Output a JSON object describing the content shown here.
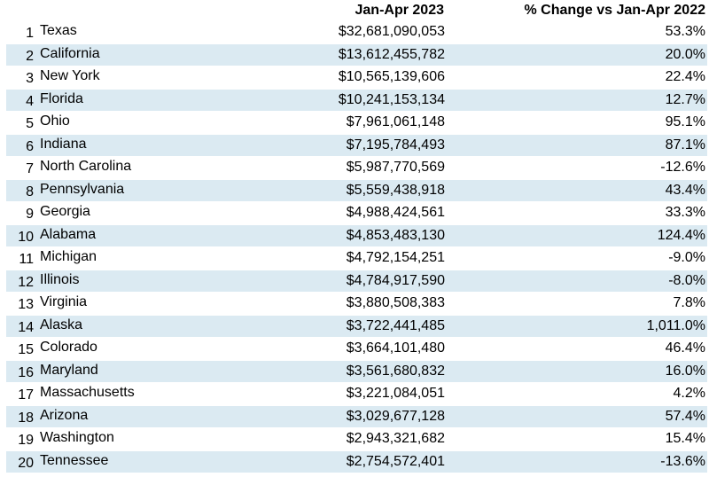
{
  "header": {
    "value_label": "Jan-Apr 2023",
    "change_label": "% Change vs Jan-Apr 2022"
  },
  "colors": {
    "stripe": "#dbeaf2",
    "background": "#ffffff",
    "text": "#000000"
  },
  "chart_data": {
    "type": "table",
    "columns": [
      "",
      "",
      "Jan-Apr 2023",
      "% Change vs Jan-Apr 2022"
    ],
    "rows": [
      {
        "rank": "1",
        "state": "Texas",
        "value": "$32,681,090,053",
        "change": "53.3%"
      },
      {
        "rank": "2",
        "state": "California",
        "value": "$13,612,455,782",
        "change": "20.0%"
      },
      {
        "rank": "3",
        "state": "New York",
        "value": "$10,565,139,606",
        "change": "22.4%"
      },
      {
        "rank": "4",
        "state": "Florida",
        "value": "$10,241,153,134",
        "change": "12.7%"
      },
      {
        "rank": "5",
        "state": "Ohio",
        "value": "$7,961,061,148",
        "change": "95.1%"
      },
      {
        "rank": "6",
        "state": "Indiana",
        "value": "$7,195,784,493",
        "change": "87.1%"
      },
      {
        "rank": "7",
        "state": "North Carolina",
        "value": "$5,987,770,569",
        "change": "-12.6%"
      },
      {
        "rank": "8",
        "state": "Pennsylvania",
        "value": "$5,559,438,918",
        "change": "43.4%"
      },
      {
        "rank": "9",
        "state": "Georgia",
        "value": "$4,988,424,561",
        "change": "33.3%"
      },
      {
        "rank": "10",
        "state": "Alabama",
        "value": "$4,853,483,130",
        "change": "124.4%"
      },
      {
        "rank": "11",
        "state": "Michigan",
        "value": "$4,792,154,251",
        "change": "-9.0%"
      },
      {
        "rank": "12",
        "state": "Illinois",
        "value": "$4,784,917,590",
        "change": "-8.0%"
      },
      {
        "rank": "13",
        "state": "Virginia",
        "value": "$3,880,508,383",
        "change": "7.8%"
      },
      {
        "rank": "14",
        "state": "Alaska",
        "value": "$3,722,441,485",
        "change": "1,011.0%"
      },
      {
        "rank": "15",
        "state": "Colorado",
        "value": "$3,664,101,480",
        "change": "46.4%"
      },
      {
        "rank": "16",
        "state": "Maryland",
        "value": "$3,561,680,832",
        "change": "16.0%"
      },
      {
        "rank": "17",
        "state": "Massachusetts",
        "value": "$3,221,084,051",
        "change": "4.2%"
      },
      {
        "rank": "18",
        "state": "Arizona",
        "value": "$3,029,677,128",
        "change": "57.4%"
      },
      {
        "rank": "19",
        "state": "Washington",
        "value": "$2,943,321,682",
        "change": "15.4%"
      },
      {
        "rank": "20",
        "state": "Tennessee",
        "value": "$2,754,572,401",
        "change": "-13.6%"
      }
    ]
  }
}
